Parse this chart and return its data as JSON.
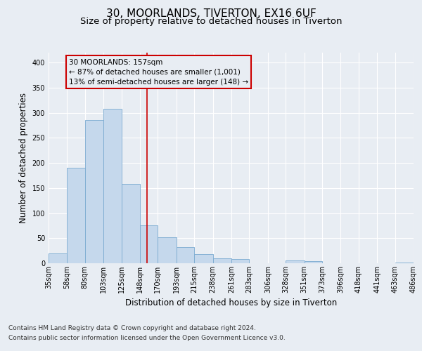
{
  "title1": "30, MOORLANDS, TIVERTON, EX16 6UF",
  "title2": "Size of property relative to detached houses in Tiverton",
  "xlabel": "Distribution of detached houses by size in Tiverton",
  "ylabel": "Number of detached properties",
  "footnote1": "Contains HM Land Registry data © Crown copyright and database right 2024.",
  "footnote2": "Contains public sector information licensed under the Open Government Licence v3.0.",
  "annotation_line1": "30 MOORLANDS: 157sqm",
  "annotation_line2": "← 87% of detached houses are smaller (1,001)",
  "annotation_line3": "13% of semi-detached houses are larger (148) →",
  "property_size": 157,
  "bar_color": "#c5d8ec",
  "bar_edge_color": "#7aaad0",
  "vline_color": "#cc0000",
  "annotation_box_color": "#cc0000",
  "bin_labels": [
    "35sqm",
    "58sqm",
    "80sqm",
    "103sqm",
    "125sqm",
    "148sqm",
    "170sqm",
    "193sqm",
    "215sqm",
    "238sqm",
    "261sqm",
    "283sqm",
    "306sqm",
    "328sqm",
    "351sqm",
    "373sqm",
    "396sqm",
    "418sqm",
    "441sqm",
    "463sqm",
    "486sqm"
  ],
  "bin_edges": [
    35,
    58,
    80,
    103,
    125,
    148,
    170,
    193,
    215,
    238,
    261,
    283,
    306,
    328,
    351,
    373,
    396,
    418,
    441,
    463,
    486
  ],
  "bar_heights": [
    20,
    190,
    285,
    308,
    158,
    75,
    52,
    32,
    18,
    10,
    8,
    0,
    0,
    5,
    4,
    0,
    0,
    0,
    0,
    2
  ],
  "ylim": [
    0,
    420
  ],
  "yticks": [
    0,
    50,
    100,
    150,
    200,
    250,
    300,
    350,
    400
  ],
  "background_color": "#e8edf3",
  "plot_bg_color": "#e8edf3",
  "grid_color": "#ffffff",
  "title_fontsize": 11,
  "subtitle_fontsize": 9.5,
  "tick_fontsize": 7,
  "label_fontsize": 8.5,
  "footnote_fontsize": 6.5,
  "annotation_fontsize": 7.5
}
